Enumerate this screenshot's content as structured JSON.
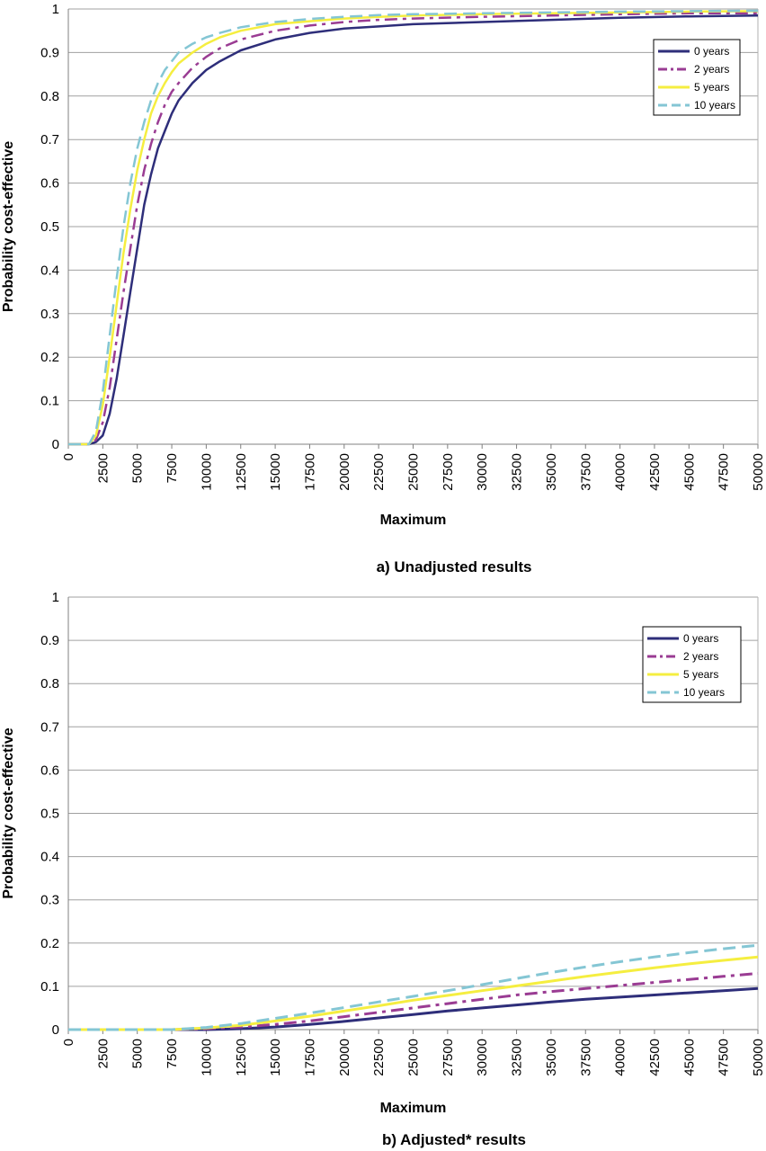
{
  "chart_data": [
    {
      "type": "line",
      "caption": "a) Unadjusted results",
      "xlabel": "Maximum",
      "ylabel": "Probability cost-effective",
      "xlim": [
        0,
        50000
      ],
      "ylim": [
        0,
        1
      ],
      "x_ticks": [
        "0",
        "2500",
        "5000",
        "7500",
        "10000",
        "12500",
        "15000",
        "17500",
        "20000",
        "22500",
        "25000",
        "27500",
        "30000",
        "32500",
        "35000",
        "37500",
        "40000",
        "42500",
        "45000",
        "47500",
        "50000"
      ],
      "y_ticks": [
        "0",
        "0.1",
        "0.2",
        "0.3",
        "0.4",
        "0.5",
        "0.6",
        "0.7",
        "0.8",
        "0.9",
        "1"
      ],
      "grid": "horizontal",
      "legend_position": "top-right",
      "series": [
        {
          "name": "0 years",
          "color": "#2e2e7a",
          "dash": "solid",
          "width": 2.5,
          "x": [
            0,
            1500,
            2000,
            2500,
            3000,
            3500,
            4000,
            4500,
            5000,
            5500,
            6000,
            6500,
            7000,
            7500,
            8000,
            9000,
            10000,
            11000,
            12500,
            15000,
            17500,
            20000,
            22500,
            25000,
            30000,
            35000,
            40000,
            45000,
            50000
          ],
          "y": [
            0,
            0,
            0.005,
            0.02,
            0.07,
            0.15,
            0.25,
            0.35,
            0.45,
            0.55,
            0.62,
            0.68,
            0.72,
            0.76,
            0.79,
            0.83,
            0.86,
            0.88,
            0.905,
            0.93,
            0.945,
            0.955,
            0.96,
            0.965,
            0.97,
            0.975,
            0.98,
            0.983,
            0.985
          ]
        },
        {
          "name": "2 years",
          "color": "#9a3c93",
          "dash": "dashdot",
          "width": 2.5,
          "x": [
            0,
            1500,
            2000,
            2500,
            3000,
            3500,
            4000,
            4500,
            5000,
            5500,
            6000,
            6500,
            7000,
            7500,
            8000,
            9000,
            10000,
            11000,
            12500,
            15000,
            17500,
            20000,
            22500,
            25000,
            30000,
            35000,
            40000,
            45000,
            50000
          ],
          "y": [
            0,
            0,
            0.01,
            0.05,
            0.13,
            0.24,
            0.35,
            0.45,
            0.55,
            0.63,
            0.69,
            0.74,
            0.78,
            0.81,
            0.83,
            0.865,
            0.89,
            0.91,
            0.93,
            0.95,
            0.962,
            0.97,
            0.975,
            0.978,
            0.982,
            0.985,
            0.988,
            0.99,
            0.99
          ]
        },
        {
          "name": "5 years",
          "color": "#f5ee40",
          "dash": "solid",
          "width": 2.5,
          "x": [
            0,
            1500,
            2000,
            2500,
            3000,
            3500,
            4000,
            4500,
            5000,
            5500,
            6000,
            6500,
            7000,
            7500,
            8000,
            9000,
            10000,
            11000,
            12500,
            15000,
            17500,
            20000,
            22500,
            25000,
            30000,
            35000,
            40000,
            45000,
            50000
          ],
          "y": [
            0,
            0,
            0.02,
            0.09,
            0.2,
            0.32,
            0.44,
            0.54,
            0.63,
            0.7,
            0.76,
            0.8,
            0.83,
            0.855,
            0.875,
            0.9,
            0.92,
            0.935,
            0.95,
            0.965,
            0.972,
            0.978,
            0.982,
            0.985,
            0.988,
            0.99,
            0.992,
            0.994,
            0.995
          ]
        },
        {
          "name": "10 years",
          "color": "#84c6d4",
          "dash": "dash",
          "width": 2.5,
          "x": [
            0,
            1500,
            2000,
            2500,
            3000,
            3500,
            4000,
            4500,
            5000,
            5500,
            6000,
            6500,
            7000,
            7500,
            8000,
            9000,
            10000,
            11000,
            12500,
            15000,
            17500,
            20000,
            22500,
            25000,
            30000,
            35000,
            40000,
            45000,
            50000
          ],
          "y": [
            0,
            0,
            0.03,
            0.12,
            0.25,
            0.38,
            0.5,
            0.6,
            0.68,
            0.74,
            0.79,
            0.83,
            0.86,
            0.88,
            0.9,
            0.92,
            0.935,
            0.945,
            0.958,
            0.97,
            0.977,
            0.982,
            0.986,
            0.988,
            0.99,
            0.992,
            0.994,
            0.995,
            0.996
          ]
        }
      ]
    },
    {
      "type": "line",
      "caption": "b) Adjusted* results",
      "xlabel": "Maximum",
      "ylabel": "Probability cost-effective",
      "xlim": [
        0,
        50000
      ],
      "ylim": [
        0,
        1
      ],
      "x_ticks": [
        "0",
        "2500",
        "5000",
        "7500",
        "10000",
        "12500",
        "15000",
        "17500",
        "20000",
        "22500",
        "25000",
        "27500",
        "30000",
        "32500",
        "35000",
        "37500",
        "40000",
        "42500",
        "45000",
        "47500",
        "50000"
      ],
      "y_ticks": [
        "0",
        "0.1",
        "0.2",
        "0.3",
        "0.4",
        "0.5",
        "0.6",
        "0.7",
        "0.8",
        "0.9",
        "1"
      ],
      "grid": "horizontal",
      "legend_position": "top-right",
      "series": [
        {
          "name": "0 years",
          "color": "#2e2e7a",
          "dash": "solid",
          "width": 3,
          "x": [
            0,
            7500,
            10000,
            12500,
            15000,
            17500,
            20000,
            22500,
            25000,
            27500,
            30000,
            32500,
            35000,
            37500,
            40000,
            42500,
            45000,
            47500,
            50000
          ],
          "y": [
            0,
            0,
            0,
            0.002,
            0.006,
            0.012,
            0.019,
            0.027,
            0.035,
            0.043,
            0.05,
            0.057,
            0.064,
            0.07,
            0.075,
            0.08,
            0.085,
            0.09,
            0.095
          ]
        },
        {
          "name": "2 years",
          "color": "#9a3c93",
          "dash": "dashdot",
          "width": 3,
          "x": [
            0,
            7500,
            10000,
            12500,
            15000,
            17500,
            20000,
            22500,
            25000,
            27500,
            30000,
            32500,
            35000,
            37500,
            40000,
            42500,
            45000,
            47500,
            50000
          ],
          "y": [
            0,
            0,
            0.002,
            0.006,
            0.012,
            0.02,
            0.03,
            0.04,
            0.05,
            0.06,
            0.07,
            0.08,
            0.088,
            0.095,
            0.102,
            0.109,
            0.116,
            0.123,
            0.13
          ]
        },
        {
          "name": "5 years",
          "color": "#f5ee40",
          "dash": "solid",
          "width": 3,
          "x": [
            0,
            7500,
            10000,
            12500,
            15000,
            17500,
            20000,
            22500,
            25000,
            27500,
            30000,
            32500,
            35000,
            37500,
            40000,
            42500,
            45000,
            47500,
            50000
          ],
          "y": [
            0,
            0,
            0.004,
            0.01,
            0.02,
            0.031,
            0.043,
            0.055,
            0.068,
            0.079,
            0.09,
            0.101,
            0.112,
            0.123,
            0.133,
            0.143,
            0.152,
            0.16,
            0.168
          ]
        },
        {
          "name": "10 years",
          "color": "#84c6d4",
          "dash": "dash",
          "width": 3,
          "x": [
            0,
            7500,
            10000,
            12500,
            15000,
            17500,
            20000,
            22500,
            25000,
            27500,
            30000,
            32500,
            35000,
            37500,
            40000,
            42500,
            45000,
            47500,
            50000
          ],
          "y": [
            0,
            0,
            0.005,
            0.014,
            0.026,
            0.038,
            0.051,
            0.064,
            0.077,
            0.09,
            0.104,
            0.118,
            0.132,
            0.145,
            0.157,
            0.168,
            0.178,
            0.187,
            0.195
          ]
        }
      ]
    }
  ]
}
